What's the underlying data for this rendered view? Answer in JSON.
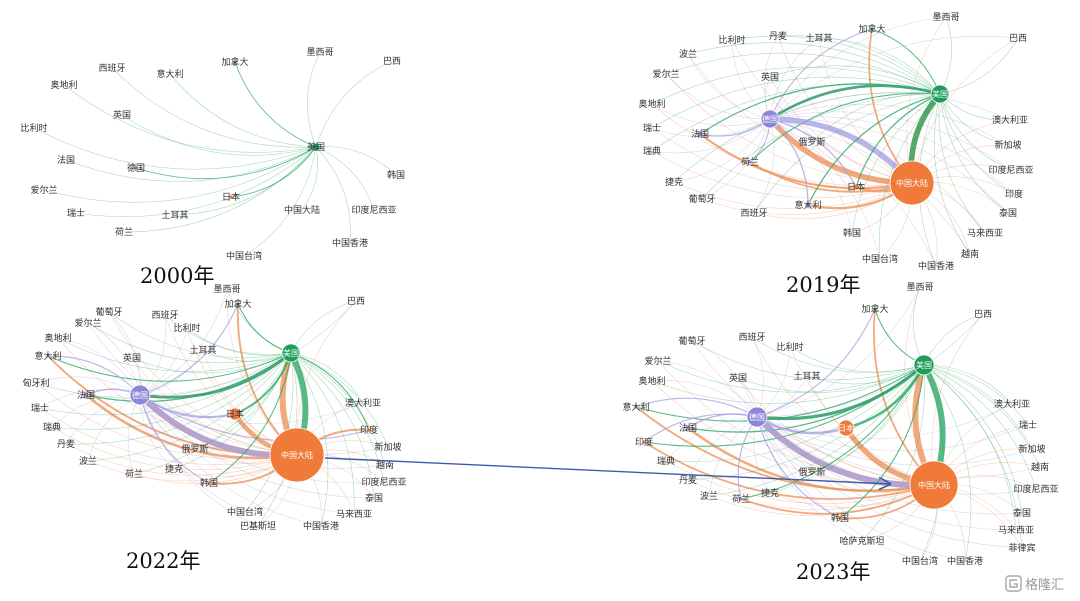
{
  "colors": {
    "europe": "#8d86d8",
    "america": "#1f9b5c",
    "asia": "#ef7a3a",
    "link_europe": "#a9a3e2",
    "link_america": "#2ea866",
    "link_asia": "#f0935a",
    "arrow": "#3f5aa8",
    "node_stroke": "#ffffff"
  },
  "watermark": {
    "icon": "gelonghui-logo-icon",
    "text": "格隆汇"
  },
  "panels": [
    {
      "year": "2000年",
      "hubs": [
        "美国"
      ],
      "nodes": [
        {
          "label": "西班牙",
          "group": "e",
          "size": 0
        },
        {
          "label": "意大利",
          "group": "e",
          "size": 0
        },
        {
          "label": "加拿大",
          "group": "a",
          "size": 2
        },
        {
          "label": "墨西哥",
          "group": "a",
          "size": 0
        },
        {
          "label": "巴西",
          "group": "a",
          "size": 0
        },
        {
          "label": "奥地利",
          "group": "e",
          "size": 0
        },
        {
          "label": "英国",
          "group": "e",
          "size": 0
        },
        {
          "label": "比利时",
          "group": "e",
          "size": 0
        },
        {
          "label": "美国",
          "group": "a",
          "size": 4
        },
        {
          "label": "法国",
          "group": "e",
          "size": 0
        },
        {
          "label": "德国",
          "group": "e",
          "size": 2
        },
        {
          "label": "韩国",
          "group": "s",
          "size": 0
        },
        {
          "label": "爱尔兰",
          "group": "e",
          "size": 0
        },
        {
          "label": "日本",
          "group": "s",
          "size": 2
        },
        {
          "label": "中国大陆",
          "group": "s",
          "size": 0
        },
        {
          "label": "印度尼西亚",
          "group": "s",
          "size": 0
        },
        {
          "label": "瑞士",
          "group": "e",
          "size": 0
        },
        {
          "label": "土耳其",
          "group": "e",
          "size": 0
        },
        {
          "label": "荷兰",
          "group": "e",
          "size": 0
        },
        {
          "label": "中国香港",
          "group": "s",
          "size": 0
        },
        {
          "label": "中国台湾",
          "group": "s",
          "size": 0
        }
      ]
    },
    {
      "year": "2019年",
      "hubs": [
        "德国",
        "美国",
        "中国大陆"
      ],
      "nodes": [
        {
          "label": "墨西哥",
          "group": "a",
          "size": 0
        },
        {
          "label": "比利时",
          "group": "e",
          "size": 0
        },
        {
          "label": "丹麦",
          "group": "e",
          "size": 0
        },
        {
          "label": "土耳其",
          "group": "e",
          "size": 0
        },
        {
          "label": "加拿大",
          "group": "a",
          "size": 2
        },
        {
          "label": "巴西",
          "group": "a",
          "size": 0
        },
        {
          "label": "波兰",
          "group": "e",
          "size": 0
        },
        {
          "label": "爱尔兰",
          "group": "e",
          "size": 0
        },
        {
          "label": "英国",
          "group": "e",
          "size": 0
        },
        {
          "label": "美国",
          "group": "a",
          "size": 9
        },
        {
          "label": "奥地利",
          "group": "e",
          "size": 0
        },
        {
          "label": "德国",
          "group": "e",
          "size": 9
        },
        {
          "label": "澳大利亚",
          "group": "s",
          "size": 0
        },
        {
          "label": "瑞士",
          "group": "e",
          "size": 0
        },
        {
          "label": "法国",
          "group": "e",
          "size": 3
        },
        {
          "label": "新加坡",
          "group": "s",
          "size": 0
        },
        {
          "label": "瑞典",
          "group": "e",
          "size": 0
        },
        {
          "label": "俄罗斯",
          "group": "e",
          "size": 0
        },
        {
          "label": "荷兰",
          "group": "e",
          "size": 2
        },
        {
          "label": "印度尼西亚",
          "group": "s",
          "size": 0
        },
        {
          "label": "捷克",
          "group": "e",
          "size": 0
        },
        {
          "label": "中国大陆",
          "group": "s",
          "size": 22
        },
        {
          "label": "日本",
          "group": "s",
          "size": 3
        },
        {
          "label": "印度",
          "group": "s",
          "size": 0
        },
        {
          "label": "葡萄牙",
          "group": "e",
          "size": 0
        },
        {
          "label": "意大利",
          "group": "e",
          "size": 3
        },
        {
          "label": "泰国",
          "group": "s",
          "size": 0
        },
        {
          "label": "西班牙",
          "group": "e",
          "size": 0
        },
        {
          "label": "马来西亚",
          "group": "s",
          "size": 0
        },
        {
          "label": "韩国",
          "group": "s",
          "size": 0
        },
        {
          "label": "越南",
          "group": "s",
          "size": 0
        },
        {
          "label": "中国台湾",
          "group": "s",
          "size": 0
        },
        {
          "label": "中国香港",
          "group": "s",
          "size": 0
        }
      ]
    },
    {
      "year": "2022年",
      "hubs": [
        "美国",
        "德国",
        "中国大陆"
      ],
      "nodes": [
        {
          "label": "墨西哥",
          "group": "a",
          "size": 0
        },
        {
          "label": "加拿大",
          "group": "a",
          "size": 2
        },
        {
          "label": "巴西",
          "group": "a",
          "size": 0
        },
        {
          "label": "葡萄牙",
          "group": "e",
          "size": 0
        },
        {
          "label": "西班牙",
          "group": "e",
          "size": 0
        },
        {
          "label": "爱尔兰",
          "group": "e",
          "size": 0
        },
        {
          "label": "比利时",
          "group": "e",
          "size": 0
        },
        {
          "label": "奥地利",
          "group": "e",
          "size": 0
        },
        {
          "label": "土耳其",
          "group": "e",
          "size": 0
        },
        {
          "label": "美国",
          "group": "a",
          "size": 9
        },
        {
          "label": "意大利",
          "group": "e",
          "size": 2
        },
        {
          "label": "英国",
          "group": "e",
          "size": 0
        },
        {
          "label": "匈牙利",
          "group": "e",
          "size": 0
        },
        {
          "label": "德国",
          "group": "e",
          "size": 10
        },
        {
          "label": "法国",
          "group": "e",
          "size": 3
        },
        {
          "label": "澳大利亚",
          "group": "s",
          "size": 0
        },
        {
          "label": "瑞士",
          "group": "e",
          "size": 0
        },
        {
          "label": "日本",
          "group": "s",
          "size": 6
        },
        {
          "label": "印度",
          "group": "s",
          "size": 2
        },
        {
          "label": "瑞典",
          "group": "e",
          "size": 0
        },
        {
          "label": "新加坡",
          "group": "s",
          "size": 0
        },
        {
          "label": "丹麦",
          "group": "e",
          "size": 0
        },
        {
          "label": "俄罗斯",
          "group": "e",
          "size": 0
        },
        {
          "label": "波兰",
          "group": "e",
          "size": 0
        },
        {
          "label": "中国大陆",
          "group": "s",
          "size": 27
        },
        {
          "label": "越南",
          "group": "s",
          "size": 0
        },
        {
          "label": "荷兰",
          "group": "e",
          "size": 0
        },
        {
          "label": "捷克",
          "group": "e",
          "size": 0
        },
        {
          "label": "印度尼西亚",
          "group": "s",
          "size": 0
        },
        {
          "label": "韩国",
          "group": "s",
          "size": 2
        },
        {
          "label": "泰国",
          "group": "s",
          "size": 0
        },
        {
          "label": "中国台湾",
          "group": "s",
          "size": 0
        },
        {
          "label": "马来西亚",
          "group": "s",
          "size": 0
        },
        {
          "label": "巴基斯坦",
          "group": "s",
          "size": 0
        },
        {
          "label": "中国香港",
          "group": "s",
          "size": 0
        }
      ]
    },
    {
      "year": "2023年",
      "hubs": [
        "美国",
        "德国",
        "中国大陆"
      ],
      "nodes": [
        {
          "label": "墨西哥",
          "group": "a",
          "size": 0
        },
        {
          "label": "加拿大",
          "group": "a",
          "size": 2
        },
        {
          "label": "巴西",
          "group": "a",
          "size": 0
        },
        {
          "label": "葡萄牙",
          "group": "e",
          "size": 0
        },
        {
          "label": "西班牙",
          "group": "e",
          "size": 0
        },
        {
          "label": "比利时",
          "group": "e",
          "size": 0
        },
        {
          "label": "爱尔兰",
          "group": "e",
          "size": 0
        },
        {
          "label": "美国",
          "group": "a",
          "size": 10
        },
        {
          "label": "英国",
          "group": "e",
          "size": 0
        },
        {
          "label": "土耳其",
          "group": "e",
          "size": 0
        },
        {
          "label": "奥地利",
          "group": "e",
          "size": 0
        },
        {
          "label": "澳大利亚",
          "group": "s",
          "size": 0
        },
        {
          "label": "意大利",
          "group": "e",
          "size": 2
        },
        {
          "label": "德国",
          "group": "e",
          "size": 10
        },
        {
          "label": "瑞士",
          "group": "e",
          "size": 0
        },
        {
          "label": "法国",
          "group": "e",
          "size": 3
        },
        {
          "label": "日本",
          "group": "s",
          "size": 8
        },
        {
          "label": "印度",
          "group": "s",
          "size": 2
        },
        {
          "label": "新加坡",
          "group": "s",
          "size": 0
        },
        {
          "label": "瑞典",
          "group": "e",
          "size": 0
        },
        {
          "label": "越南",
          "group": "s",
          "size": 0
        },
        {
          "label": "俄罗斯",
          "group": "e",
          "size": 0
        },
        {
          "label": "中国大陆",
          "group": "s",
          "size": 24
        },
        {
          "label": "丹麦",
          "group": "e",
          "size": 0
        },
        {
          "label": "印度尼西亚",
          "group": "s",
          "size": 0
        },
        {
          "label": "波兰",
          "group": "e",
          "size": 0
        },
        {
          "label": "荷兰",
          "group": "e",
          "size": 2
        },
        {
          "label": "捷克",
          "group": "e",
          "size": 0
        },
        {
          "label": "泰国",
          "group": "s",
          "size": 0
        },
        {
          "label": "韩国",
          "group": "s",
          "size": 2
        },
        {
          "label": "马来西亚",
          "group": "s",
          "size": 0
        },
        {
          "label": "菲律宾",
          "group": "s",
          "size": 0
        },
        {
          "label": "哈萨克斯坦",
          "group": "s",
          "size": 0
        },
        {
          "label": "中国台湾",
          "group": "s",
          "size": 0
        },
        {
          "label": "中国香港",
          "group": "s",
          "size": 0
        }
      ]
    }
  ]
}
